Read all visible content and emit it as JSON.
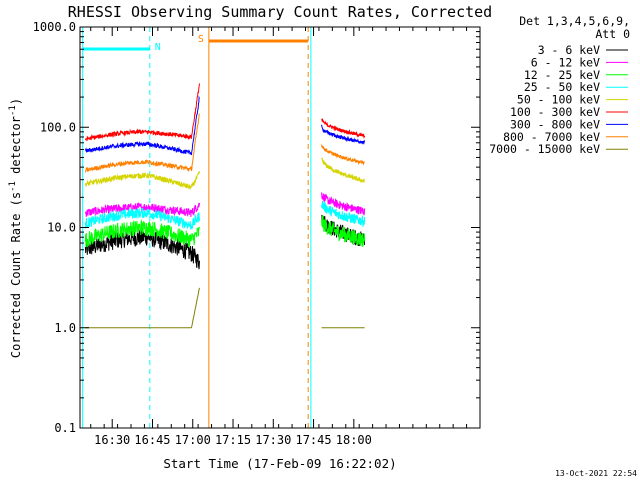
{
  "chart_data": {
    "type": "line",
    "title": "RHESSI Observing Summary Count Rates, Corrected",
    "xlabel": "Start Time (17-Feb-09 16:22:02)",
    "ylabel_main": "Corrected Count Rate (s",
    "ylabel_sup1": "-1",
    "ylabel_mid": " detector",
    "ylabel_sup2": "-1",
    "ylabel_end": ")",
    "yscale": "log",
    "ylim": [
      0.1,
      1000
    ],
    "xlim_minutes": [
      -4,
      145
    ],
    "x_ticks": [
      {
        "m": 8,
        "label": "16:30"
      },
      {
        "m": 23,
        "label": "16:45"
      },
      {
        "m": 38,
        "label": "17:00"
      },
      {
        "m": 53,
        "label": "17:15"
      },
      {
        "m": 68,
        "label": "17:30"
      },
      {
        "m": 83,
        "label": "17:45"
      },
      {
        "m": 98,
        "label": "18:00"
      }
    ],
    "y_ticks": [
      {
        "v": 0.1,
        "label": "0.1"
      },
      {
        "v": 1,
        "label": "1.0"
      },
      {
        "v": 10,
        "label": "10.0"
      },
      {
        "v": 100,
        "label": "100.0"
      },
      {
        "v": 1000,
        "label": "1000.0"
      }
    ],
    "legend_header": [
      "Det 1,3,4,5,6,9,",
      "Att 0"
    ],
    "legend_position": "top-right",
    "series": [
      {
        "name": "3 - 6 keV",
        "color": "#000000",
        "seg1": {
          "start": 6,
          "hump": 8,
          "end": 5.5,
          "noise": 0.2
        },
        "seg2": {
          "start": 13,
          "end": 7.5,
          "noise": 0.18
        }
      },
      {
        "name": "6 - 12 keV",
        "color": "#ff00ff",
        "seg1": {
          "start": 14,
          "hump": 16,
          "end": 14,
          "noise": 0.1
        },
        "seg2": {
          "start": 22,
          "end": 14.5,
          "noise": 0.1
        }
      },
      {
        "name": "12 - 25 keV",
        "color": "#00ff00",
        "seg1": {
          "start": 7.5,
          "hump": 10,
          "end": 7.5,
          "noise": 0.18
        },
        "seg2": {
          "start": 12,
          "end": 7.5,
          "noise": 0.18
        }
      },
      {
        "name": "25 - 50 keV",
        "color": "#00ffff",
        "seg1": {
          "start": 11,
          "hump": 14,
          "end": 10.5,
          "noise": 0.12
        },
        "seg2": {
          "start": 18,
          "end": 11.5,
          "noise": 0.12
        }
      },
      {
        "name": "50 - 100 keV",
        "color": "#d4d400",
        "seg1": {
          "start": 27,
          "hump": 33,
          "end": 25,
          "noise": 0.06
        },
        "seg2": {
          "start": 50,
          "end": 29,
          "noise": 0.05
        }
      },
      {
        "name": "100 - 300 keV",
        "color": "#ff0000",
        "seg1": {
          "start": 76,
          "hump": 90,
          "end": 80,
          "noise": 0.05
        },
        "seg2": {
          "start": 122,
          "end": 82,
          "noise": 0.04
        }
      },
      {
        "name": "300 - 800 keV",
        "color": "#0000ff",
        "seg1": {
          "start": 58,
          "hump": 68,
          "end": 55,
          "noise": 0.05
        },
        "seg2": {
          "start": 102,
          "end": 70,
          "noise": 0.04
        }
      },
      {
        "name": "800 - 7000 keV",
        "color": "#ff8000",
        "seg1": {
          "start": 37,
          "hump": 45,
          "end": 38,
          "noise": 0.05
        },
        "seg2": {
          "start": 68,
          "end": 44,
          "noise": 0.04
        }
      },
      {
        "name": "7000 - 15000 keV",
        "color": "#808000",
        "seg1": {
          "start": 1.0,
          "hump": 1.0,
          "end": 1.0,
          "noise": 0.0
        },
        "seg2": {
          "start": 1.0,
          "end": 1.0,
          "noise": 0.0
        }
      }
    ],
    "segments_minutes": {
      "seg1": [
        -2,
        40.5
      ],
      "gap": [
        40.5,
        85
      ],
      "seg2": [
        86,
        102
      ]
    },
    "peak_end_values": [
      4.5,
      17,
      9,
      13,
      35,
      270,
      200,
      140,
      2.5
    ],
    "flags": [
      {
        "label": "N",
        "color": "#00ffff",
        "start": -3,
        "end": 22
      },
      {
        "label": "S",
        "color": "#ff8000",
        "start": 44,
        "end": 81
      }
    ],
    "vertical_lines": [
      {
        "m": -3,
        "color": "#00ffff",
        "dash": false
      },
      {
        "m": 22,
        "color": "#00ffff",
        "dash": true
      },
      {
        "m": 44,
        "color": "#ff8000",
        "dash": false
      },
      {
        "m": 81,
        "color": "#ff8000",
        "dash": true
      },
      {
        "m": 82,
        "color": "#00ffff",
        "dash": false
      },
      {
        "m": 145,
        "color": "#00ffff",
        "dash": true
      }
    ],
    "footer_timestamp": "13-Oct-2021 22:54",
    "background": "#ffffff",
    "axis_color": "#000000"
  }
}
